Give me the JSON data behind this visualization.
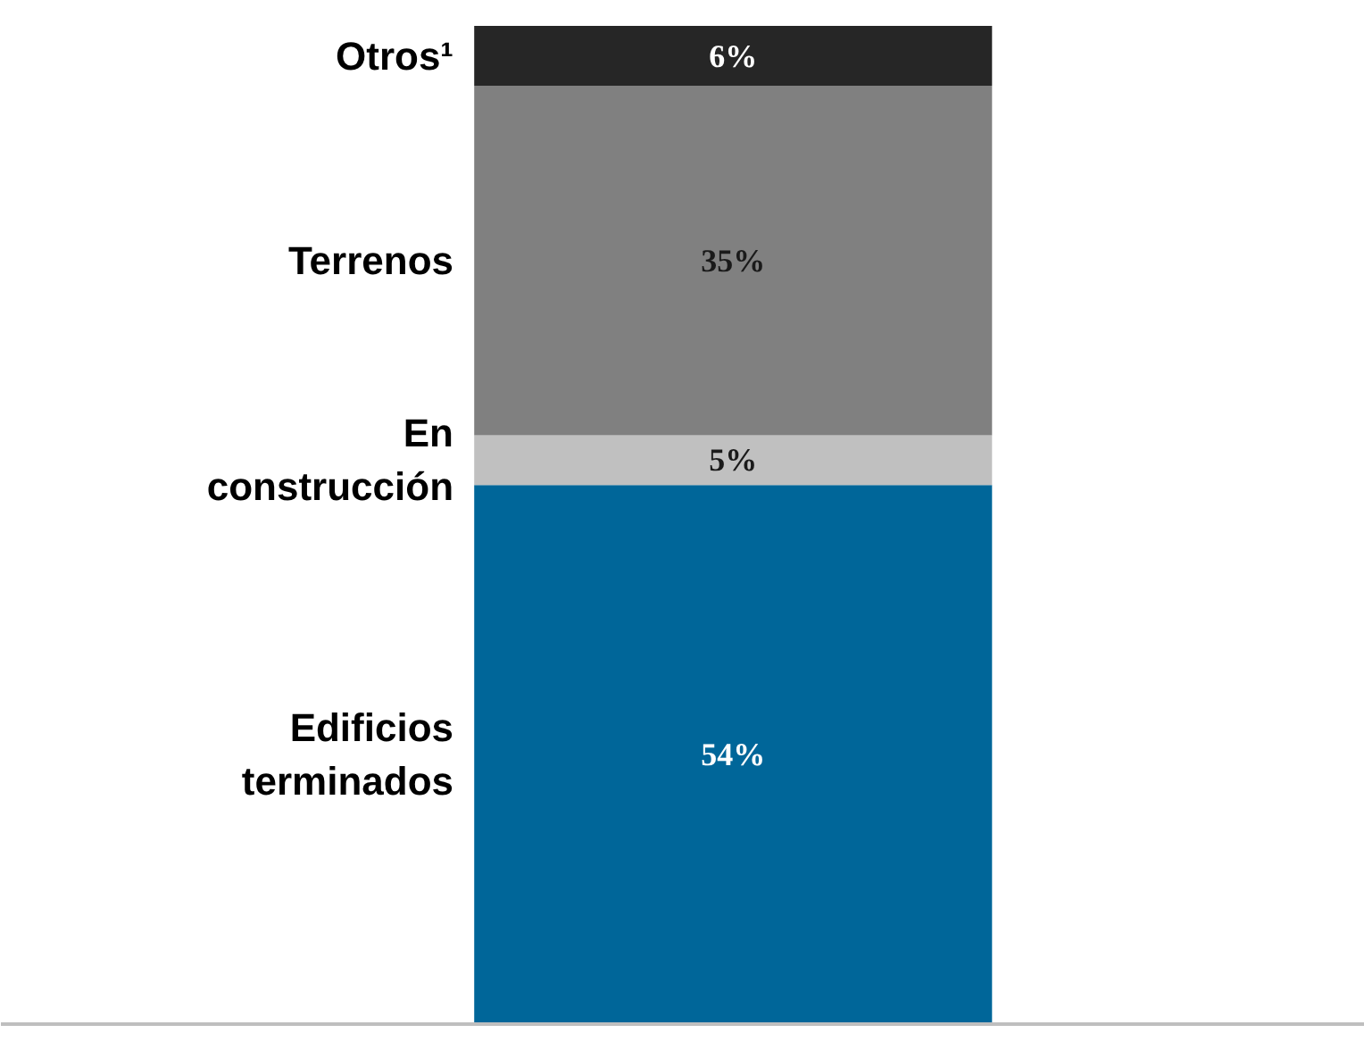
{
  "chart_data": {
    "type": "bar",
    "stacked": true,
    "categories": [
      null
    ],
    "series": [
      {
        "name": "Edificios terminados",
        "color": "#006699",
        "values": [
          54
        ],
        "value_labels": [
          "54%"
        ]
      },
      {
        "name": "En construcción",
        "color": "#c0c0c0",
        "values": [
          5
        ],
        "value_labels": [
          "5%"
        ]
      },
      {
        "name": "Terrenos",
        "color": "#808080",
        "values": [
          35
        ],
        "value_labels": [
          "35%"
        ]
      },
      {
        "name": "Otros¹",
        "color": "#262626",
        "values": [
          6
        ],
        "value_labels": [
          "6%"
        ]
      }
    ]
  }
}
